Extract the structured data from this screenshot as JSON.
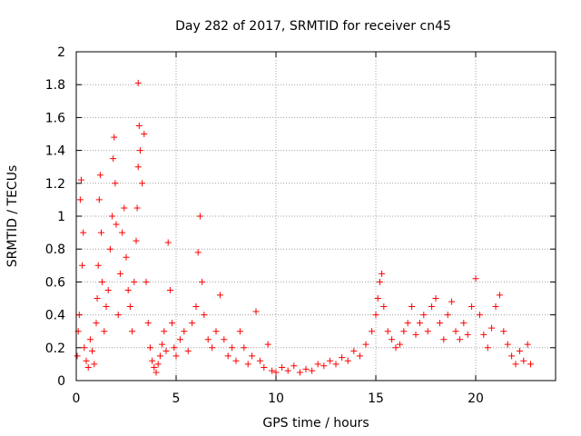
{
  "chart_data": {
    "type": "scatter",
    "title": "Day 282 of 2017, SRMTID for receiver cn45",
    "xlabel": "GPS time / hours",
    "ylabel": "SRMTID / TECUs",
    "xlim": [
      0,
      24
    ],
    "ylim": [
      0,
      2
    ],
    "xticks": [
      0,
      5,
      10,
      15,
      20
    ],
    "yticks": [
      0,
      0.2,
      0.4,
      0.6,
      0.8,
      1,
      1.2,
      1.4,
      1.6,
      1.8,
      2
    ],
    "xtick_labels": [
      "0",
      "5",
      "10",
      "15",
      "20"
    ],
    "ytick_labels": [
      "0",
      "0.2",
      "0.4",
      "0.6",
      "0.8",
      "1",
      "1.2",
      "1.4",
      "1.6",
      "1.8",
      "2"
    ],
    "grid": true,
    "marker": "+",
    "color": "#ff0000",
    "series": [
      {
        "name": "SRMTID",
        "points": [
          [
            0.05,
            0.15
          ],
          [
            0.1,
            0.3
          ],
          [
            0.15,
            0.4
          ],
          [
            0.2,
            1.1
          ],
          [
            0.25,
            1.22
          ],
          [
            0.3,
            0.7
          ],
          [
            0.35,
            0.9
          ],
          [
            0.4,
            0.2
          ],
          [
            0.5,
            0.12
          ],
          [
            0.6,
            0.08
          ],
          [
            0.7,
            0.25
          ],
          [
            0.8,
            0.18
          ],
          [
            0.9,
            0.1
          ],
          [
            1.0,
            0.35
          ],
          [
            1.05,
            0.5
          ],
          [
            1.1,
            0.7
          ],
          [
            1.15,
            1.1
          ],
          [
            1.2,
            1.25
          ],
          [
            1.25,
            0.9
          ],
          [
            1.3,
            0.6
          ],
          [
            1.4,
            0.3
          ],
          [
            1.5,
            0.45
          ],
          [
            1.6,
            0.55
          ],
          [
            1.7,
            0.8
          ],
          [
            1.8,
            1.0
          ],
          [
            1.85,
            1.35
          ],
          [
            1.9,
            1.48
          ],
          [
            1.95,
            1.2
          ],
          [
            2.0,
            0.95
          ],
          [
            2.1,
            0.4
          ],
          [
            2.2,
            0.65
          ],
          [
            2.3,
            0.9
          ],
          [
            2.4,
            1.05
          ],
          [
            2.5,
            0.75
          ],
          [
            2.6,
            0.55
          ],
          [
            2.7,
            0.45
          ],
          [
            2.8,
            0.3
          ],
          [
            2.9,
            0.6
          ],
          [
            3.0,
            0.85
          ],
          [
            3.05,
            1.05
          ],
          [
            3.1,
            1.3
          ],
          [
            3.15,
            1.55
          ],
          [
            3.1,
            1.81
          ],
          [
            3.2,
            1.4
          ],
          [
            3.3,
            1.2
          ],
          [
            3.4,
            1.5
          ],
          [
            3.5,
            0.6
          ],
          [
            3.6,
            0.35
          ],
          [
            3.7,
            0.2
          ],
          [
            3.8,
            0.12
          ],
          [
            3.9,
            0.08
          ],
          [
            4.0,
            0.05
          ],
          [
            4.1,
            0.1
          ],
          [
            4.2,
            0.15
          ],
          [
            4.3,
            0.22
          ],
          [
            4.4,
            0.3
          ],
          [
            4.5,
            0.18
          ],
          [
            4.6,
            0.84
          ],
          [
            4.7,
            0.55
          ],
          [
            4.8,
            0.35
          ],
          [
            4.9,
            0.2
          ],
          [
            5.0,
            0.15
          ],
          [
            5.2,
            0.25
          ],
          [
            5.4,
            0.3
          ],
          [
            5.6,
            0.18
          ],
          [
            5.8,
            0.35
          ],
          [
            6.0,
            0.45
          ],
          [
            6.1,
            0.78
          ],
          [
            6.2,
            1.0
          ],
          [
            6.3,
            0.6
          ],
          [
            6.4,
            0.4
          ],
          [
            6.6,
            0.25
          ],
          [
            6.8,
            0.2
          ],
          [
            7.0,
            0.3
          ],
          [
            7.2,
            0.52
          ],
          [
            7.4,
            0.25
          ],
          [
            7.6,
            0.15
          ],
          [
            7.8,
            0.2
          ],
          [
            8.0,
            0.12
          ],
          [
            8.2,
            0.3
          ],
          [
            8.4,
            0.2
          ],
          [
            8.6,
            0.1
          ],
          [
            8.8,
            0.15
          ],
          [
            9.0,
            0.42
          ],
          [
            9.2,
            0.12
          ],
          [
            9.4,
            0.08
          ],
          [
            9.6,
            0.22
          ],
          [
            9.8,
            0.06
          ],
          [
            10.0,
            0.05
          ],
          [
            10.3,
            0.08
          ],
          [
            10.6,
            0.06
          ],
          [
            10.9,
            0.09
          ],
          [
            11.2,
            0.05
          ],
          [
            11.5,
            0.07
          ],
          [
            11.8,
            0.06
          ],
          [
            12.1,
            0.1
          ],
          [
            12.4,
            0.09
          ],
          [
            12.7,
            0.12
          ],
          [
            13.0,
            0.1
          ],
          [
            13.3,
            0.14
          ],
          [
            13.6,
            0.12
          ],
          [
            13.9,
            0.18
          ],
          [
            14.2,
            0.15
          ],
          [
            14.5,
            0.22
          ],
          [
            14.8,
            0.3
          ],
          [
            15.0,
            0.4
          ],
          [
            15.1,
            0.5
          ],
          [
            15.2,
            0.6
          ],
          [
            15.3,
            0.65
          ],
          [
            15.4,
            0.45
          ],
          [
            15.6,
            0.3
          ],
          [
            15.8,
            0.25
          ],
          [
            16.0,
            0.2
          ],
          [
            16.2,
            0.22
          ],
          [
            16.4,
            0.3
          ],
          [
            16.6,
            0.35
          ],
          [
            16.8,
            0.45
          ],
          [
            17.0,
            0.28
          ],
          [
            17.2,
            0.35
          ],
          [
            17.4,
            0.4
          ],
          [
            17.6,
            0.3
          ],
          [
            17.8,
            0.45
          ],
          [
            18.0,
            0.5
          ],
          [
            18.2,
            0.35
          ],
          [
            18.4,
            0.25
          ],
          [
            18.6,
            0.4
          ],
          [
            18.8,
            0.48
          ],
          [
            19.0,
            0.3
          ],
          [
            19.2,
            0.25
          ],
          [
            19.4,
            0.35
          ],
          [
            19.6,
            0.28
          ],
          [
            19.8,
            0.45
          ],
          [
            20.0,
            0.62
          ],
          [
            20.2,
            0.4
          ],
          [
            20.4,
            0.28
          ],
          [
            20.6,
            0.2
          ],
          [
            20.8,
            0.32
          ],
          [
            21.0,
            0.45
          ],
          [
            21.2,
            0.52
          ],
          [
            21.4,
            0.3
          ],
          [
            21.6,
            0.22
          ],
          [
            21.8,
            0.15
          ],
          [
            22.0,
            0.1
          ],
          [
            22.2,
            0.18
          ],
          [
            22.4,
            0.12
          ],
          [
            22.6,
            0.22
          ],
          [
            22.75,
            0.1
          ]
        ]
      }
    ]
  }
}
